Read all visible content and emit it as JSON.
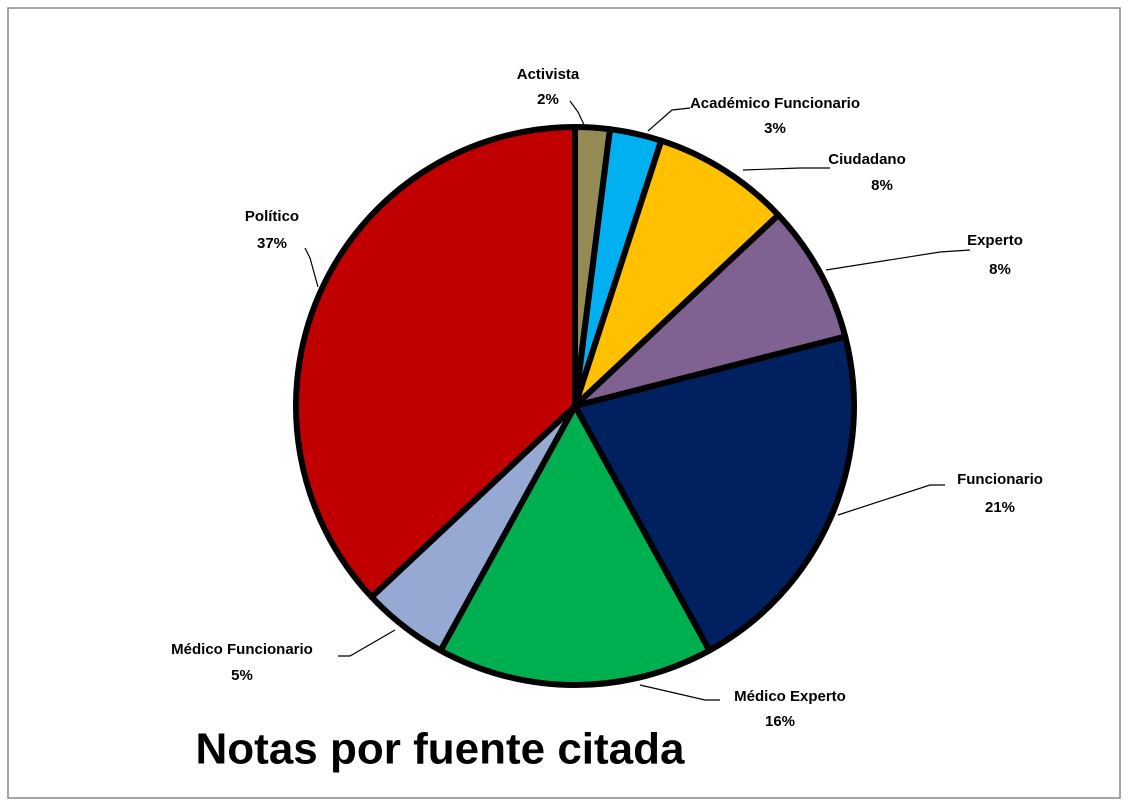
{
  "chart_data": {
    "type": "pie",
    "title": "Notas por fuente citada",
    "categories": [
      "Activista",
      "Académico Funcionario",
      "Ciudadano",
      "Experto",
      "Funcionario",
      "Médico Experto",
      "Médico Funcionario",
      "Político"
    ],
    "values": [
      2,
      3,
      8,
      8,
      21,
      16,
      5,
      37
    ],
    "value_labels": [
      "2%",
      "3%",
      "8%",
      "8%",
      "21%",
      "16%",
      "5%",
      "37%"
    ],
    "colors": [
      "#948a54",
      "#00b0f0",
      "#ffc000",
      "#7f6192",
      "#002060",
      "#00b050",
      "#95a9d2",
      "#c00000"
    ]
  }
}
